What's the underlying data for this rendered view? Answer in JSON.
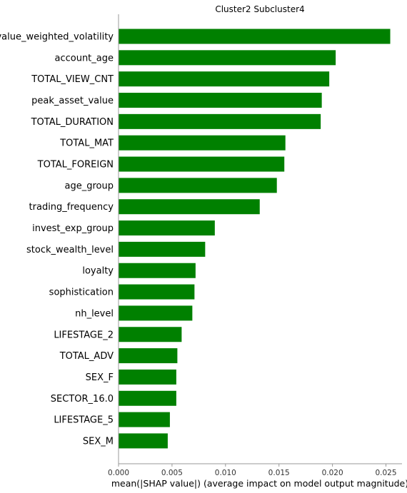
{
  "chart_data": {
    "type": "bar",
    "orientation": "horizontal",
    "title": "Cluster2 Subcluster4",
    "xlabel": "mean(|SHAP value|) (average impact on model output magnitude)",
    "ylabel": "",
    "xlim": [
      0,
      0.0265
    ],
    "xticks": [
      "0.000",
      "0.005",
      "0.010",
      "0.015",
      "0.020",
      "0.025"
    ],
    "bar_color": "#008000",
    "grid": false,
    "categories": [
      "value_weighted_volatility",
      "account_age",
      "TOTAL_VIEW_CNT",
      "peak_asset_value",
      "TOTAL_DURATION",
      "TOTAL_MAT",
      "TOTAL_FOREIGN",
      "age_group",
      "trading_frequency",
      "invest_exp_group",
      "stock_wealth_level",
      "loyalty",
      "sophistication",
      "nh_level",
      "LIFESTAGE_2",
      "TOTAL_ADV",
      "SEX_F",
      "SECTOR_16.0",
      "LIFESTAGE_5",
      "SEX_M"
    ],
    "values": [
      0.0254,
      0.0203,
      0.0197,
      0.019,
      0.0189,
      0.0156,
      0.0155,
      0.0148,
      0.0132,
      0.009,
      0.0081,
      0.0072,
      0.0071,
      0.0069,
      0.0059,
      0.0055,
      0.0054,
      0.0054,
      0.0048,
      0.0046
    ]
  }
}
